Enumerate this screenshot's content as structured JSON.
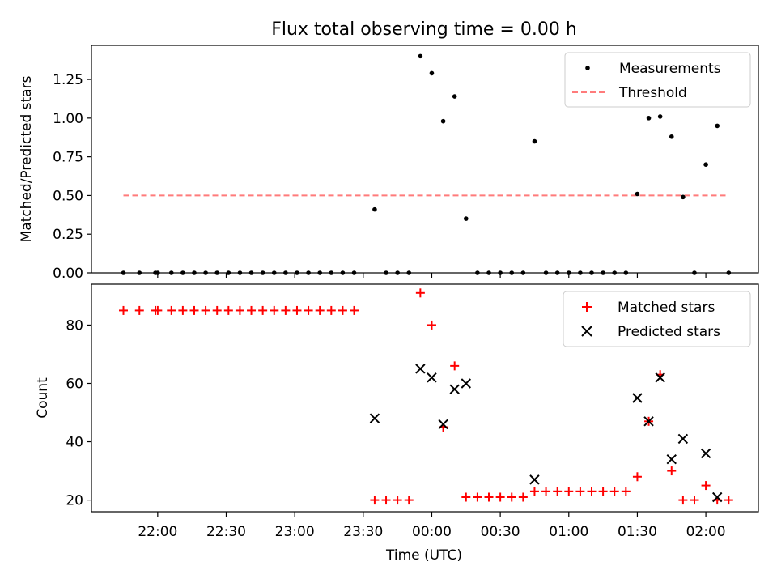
{
  "chart_data": [
    {
      "type": "scatter",
      "title": "Flux total observing time = 0.00 h",
      "xlabel": "",
      "ylabel": "Matched/Predicted stars",
      "ylim": [
        0,
        1.47
      ],
      "yticks": [
        "0.00",
        "0.25",
        "0.50",
        "0.75",
        "1.00",
        "1.25"
      ],
      "legend_position": "top-right",
      "series": [
        {
          "name": "Measurements",
          "marker": "dot",
          "color": "#000000",
          "points": [
            {
              "t": "21:45",
              "y": 0
            },
            {
              "t": "21:52",
              "y": 0
            },
            {
              "t": "21:59",
              "y": 0
            },
            {
              "t": "22:00",
              "y": 0
            },
            {
              "t": "22:06",
              "y": 0
            },
            {
              "t": "22:11",
              "y": 0
            },
            {
              "t": "22:16",
              "y": 0
            },
            {
              "t": "22:21",
              "y": 0
            },
            {
              "t": "22:26",
              "y": 0
            },
            {
              "t": "22:31",
              "y": 0
            },
            {
              "t": "22:36",
              "y": 0
            },
            {
              "t": "22:41",
              "y": 0
            },
            {
              "t": "22:46",
              "y": 0
            },
            {
              "t": "22:51",
              "y": 0
            },
            {
              "t": "22:56",
              "y": 0
            },
            {
              "t": "23:01",
              "y": 0
            },
            {
              "t": "23:06",
              "y": 0
            },
            {
              "t": "23:11",
              "y": 0
            },
            {
              "t": "23:16",
              "y": 0
            },
            {
              "t": "23:21",
              "y": 0
            },
            {
              "t": "23:26",
              "y": 0
            },
            {
              "t": "23:35",
              "y": 0.41
            },
            {
              "t": "23:40",
              "y": 0
            },
            {
              "t": "23:45",
              "y": 0
            },
            {
              "t": "23:50",
              "y": 0
            },
            {
              "t": "23:55",
              "y": 1.4
            },
            {
              "t": "00:00",
              "y": 1.29
            },
            {
              "t": "00:05",
              "y": 0.98
            },
            {
              "t": "00:10",
              "y": 1.14
            },
            {
              "t": "00:15",
              "y": 0.35
            },
            {
              "t": "00:20",
              "y": 0
            },
            {
              "t": "00:25",
              "y": 0
            },
            {
              "t": "00:30",
              "y": 0
            },
            {
              "t": "00:35",
              "y": 0
            },
            {
              "t": "00:40",
              "y": 0
            },
            {
              "t": "00:45",
              "y": 0.85
            },
            {
              "t": "00:50",
              "y": 0
            },
            {
              "t": "00:55",
              "y": 0
            },
            {
              "t": "01:00",
              "y": 0
            },
            {
              "t": "01:05",
              "y": 0
            },
            {
              "t": "01:10",
              "y": 0
            },
            {
              "t": "01:15",
              "y": 0
            },
            {
              "t": "01:20",
              "y": 0
            },
            {
              "t": "01:25",
              "y": 0
            },
            {
              "t": "01:30",
              "y": 0.51
            },
            {
              "t": "01:35",
              "y": 1.0
            },
            {
              "t": "01:40",
              "y": 1.01
            },
            {
              "t": "01:45",
              "y": 0.88
            },
            {
              "t": "01:50",
              "y": 0.49
            },
            {
              "t": "01:55",
              "y": 0
            },
            {
              "t": "02:00",
              "y": 0.7
            },
            {
              "t": "02:05",
              "y": 0.95
            },
            {
              "t": "02:10",
              "y": 0
            }
          ]
        },
        {
          "name": "Threshold",
          "marker": "dashed-line",
          "color": "#ff7b7b",
          "points": [
            {
              "t": "21:45",
              "y": 0.5
            },
            {
              "t": "02:10",
              "y": 0.5
            }
          ]
        }
      ]
    },
    {
      "type": "scatter",
      "title": "",
      "xlabel": "Time (UTC)",
      "ylabel": "Count",
      "ylim": [
        16,
        94
      ],
      "yticks": [
        "20",
        "40",
        "60",
        "80"
      ],
      "xticks": [
        "22:00",
        "22:30",
        "23:00",
        "23:30",
        "00:00",
        "00:30",
        "01:00",
        "01:30",
        "02:00"
      ],
      "xtick_times": [
        "22:00",
        "22:30",
        "23:00",
        "23:30",
        "00:00",
        "00:30",
        "01:00",
        "01:30",
        "02:00"
      ],
      "xlim": [
        "21:31",
        "02:23"
      ],
      "legend_position": "top-right",
      "series": [
        {
          "name": "Matched stars",
          "marker": "plus",
          "color": "#ff0000",
          "points": [
            {
              "t": "21:45",
              "y": 85
            },
            {
              "t": "21:52",
              "y": 85
            },
            {
              "t": "21:59",
              "y": 85
            },
            {
              "t": "22:00",
              "y": 85
            },
            {
              "t": "22:06",
              "y": 85
            },
            {
              "t": "22:11",
              "y": 85
            },
            {
              "t": "22:16",
              "y": 85
            },
            {
              "t": "22:21",
              "y": 85
            },
            {
              "t": "22:26",
              "y": 85
            },
            {
              "t": "22:31",
              "y": 85
            },
            {
              "t": "22:36",
              "y": 85
            },
            {
              "t": "22:41",
              "y": 85
            },
            {
              "t": "22:46",
              "y": 85
            },
            {
              "t": "22:51",
              "y": 85
            },
            {
              "t": "22:56",
              "y": 85
            },
            {
              "t": "23:01",
              "y": 85
            },
            {
              "t": "23:06",
              "y": 85
            },
            {
              "t": "23:11",
              "y": 85
            },
            {
              "t": "23:16",
              "y": 85
            },
            {
              "t": "23:21",
              "y": 85
            },
            {
              "t": "23:26",
              "y": 85
            },
            {
              "t": "23:35",
              "y": 20
            },
            {
              "t": "23:40",
              "y": 20
            },
            {
              "t": "23:45",
              "y": 20
            },
            {
              "t": "23:50",
              "y": 20
            },
            {
              "t": "23:55",
              "y": 91
            },
            {
              "t": "00:00",
              "y": 80
            },
            {
              "t": "00:05",
              "y": 45
            },
            {
              "t": "00:10",
              "y": 66
            },
            {
              "t": "00:15",
              "y": 21
            },
            {
              "t": "00:20",
              "y": 21
            },
            {
              "t": "00:25",
              "y": 21
            },
            {
              "t": "00:30",
              "y": 21
            },
            {
              "t": "00:35",
              "y": 21
            },
            {
              "t": "00:40",
              "y": 21
            },
            {
              "t": "00:45",
              "y": 23
            },
            {
              "t": "00:50",
              "y": 23
            },
            {
              "t": "00:55",
              "y": 23
            },
            {
              "t": "01:00",
              "y": 23
            },
            {
              "t": "01:05",
              "y": 23
            },
            {
              "t": "01:10",
              "y": 23
            },
            {
              "t": "01:15",
              "y": 23
            },
            {
              "t": "01:20",
              "y": 23
            },
            {
              "t": "01:25",
              "y": 23
            },
            {
              "t": "01:30",
              "y": 28
            },
            {
              "t": "01:35",
              "y": 47
            },
            {
              "t": "01:40",
              "y": 63
            },
            {
              "t": "01:45",
              "y": 30
            },
            {
              "t": "01:50",
              "y": 20
            },
            {
              "t": "01:55",
              "y": 20
            },
            {
              "t": "02:00",
              "y": 25
            },
            {
              "t": "02:05",
              "y": 20
            },
            {
              "t": "02:10",
              "y": 20
            }
          ]
        },
        {
          "name": "Predicted stars",
          "marker": "x",
          "color": "#000000",
          "points": [
            {
              "t": "23:35",
              "y": 48
            },
            {
              "t": "23:55",
              "y": 65
            },
            {
              "t": "00:00",
              "y": 62
            },
            {
              "t": "00:05",
              "y": 46
            },
            {
              "t": "00:10",
              "y": 58
            },
            {
              "t": "00:15",
              "y": 60
            },
            {
              "t": "00:45",
              "y": 27
            },
            {
              "t": "01:30",
              "y": 55
            },
            {
              "t": "01:35",
              "y": 47
            },
            {
              "t": "01:40",
              "y": 62
            },
            {
              "t": "01:45",
              "y": 34
            },
            {
              "t": "01:50",
              "y": 41
            },
            {
              "t": "02:00",
              "y": 36
            },
            {
              "t": "02:05",
              "y": 21
            }
          ]
        }
      ]
    }
  ]
}
